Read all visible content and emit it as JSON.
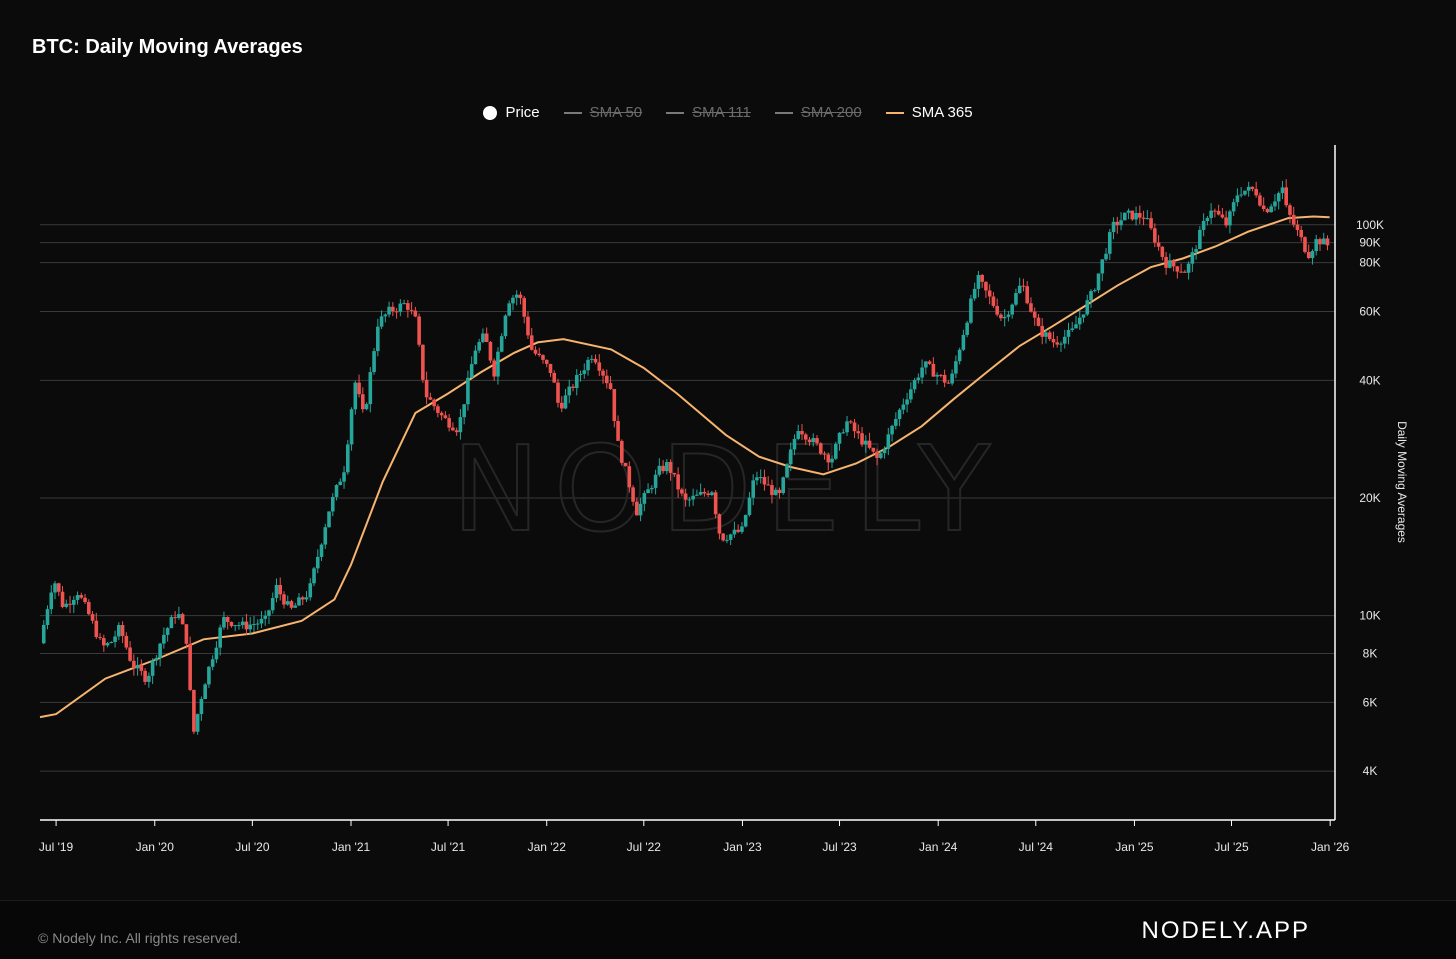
{
  "title": "BTC: Daily Moving Averages",
  "legend": [
    {
      "label": "Price",
      "marker": "dot",
      "active": true,
      "color": "#ffffff"
    },
    {
      "label": "SMA 50",
      "marker": "line",
      "active": false,
      "color": "#7a7a7a"
    },
    {
      "label": "SMA 111",
      "marker": "line",
      "active": false,
      "color": "#7a7a7a"
    },
    {
      "label": "SMA 200",
      "marker": "line",
      "active": false,
      "color": "#7a7a7a"
    },
    {
      "label": "SMA 365",
      "marker": "line",
      "active": true,
      "color": "#f6b46f"
    }
  ],
  "watermark": "NODELY",
  "footer": {
    "copyright": "© Nodely Inc. All rights reserved.",
    "brand": "NODELY.APP"
  },
  "colors": {
    "up": "#26a69a",
    "down": "#ef5350",
    "sma365": "#f6b46f",
    "grid": "#3a3a3a"
  },
  "chart_data": {
    "type": "candlestick",
    "title": "BTC: Daily Moving Averages",
    "ylabel": "Daily Moving Averages",
    "yscale": "log",
    "ylim": [
      3000,
      160000
    ],
    "xlim": [
      "2019-06-01",
      "2026-01-10"
    ],
    "grid": true,
    "legend_position": "top-center",
    "y_ticks": [
      {
        "value": 4000,
        "label": "4K"
      },
      {
        "value": 6000,
        "label": "6K"
      },
      {
        "value": 8000,
        "label": "8K"
      },
      {
        "value": 10000,
        "label": "10K"
      },
      {
        "value": 20000,
        "label": "20K"
      },
      {
        "value": 40000,
        "label": "40K"
      },
      {
        "value": 60000,
        "label": "60K"
      },
      {
        "value": 80000,
        "label": "80K"
      },
      {
        "value": 90000,
        "label": "90K"
      },
      {
        "value": 100000,
        "label": "100K"
      }
    ],
    "x_ticks": [
      {
        "date": "2019-07-01",
        "label": "Jul '19"
      },
      {
        "date": "2020-01-01",
        "label": "Jan '20"
      },
      {
        "date": "2020-07-01",
        "label": "Jul '20"
      },
      {
        "date": "2021-01-01",
        "label": "Jan '21"
      },
      {
        "date": "2021-07-01",
        "label": "Jul '21"
      },
      {
        "date": "2022-01-01",
        "label": "Jan '22"
      },
      {
        "date": "2022-07-01",
        "label": "Jul '22"
      },
      {
        "date": "2023-01-01",
        "label": "Jan '23"
      },
      {
        "date": "2023-07-01",
        "label": "Jul '23"
      },
      {
        "date": "2024-01-01",
        "label": "Jan '24"
      },
      {
        "date": "2024-07-01",
        "label": "Jul '24"
      },
      {
        "date": "2025-01-01",
        "label": "Jan '25"
      },
      {
        "date": "2025-07-01",
        "label": "Jul '25"
      },
      {
        "date": "2026-01-01",
        "label": "Jan '26"
      }
    ],
    "series": [
      {
        "name": "Price",
        "points": [
          [
            "2019-06-01",
            8500
          ],
          [
            "2019-06-26",
            12500
          ],
          [
            "2019-07-15",
            10500
          ],
          [
            "2019-08-10",
            11500
          ],
          [
            "2019-09-01",
            10000
          ],
          [
            "2019-09-25",
            8300
          ],
          [
            "2019-10-10",
            8500
          ],
          [
            "2019-10-28",
            9300
          ],
          [
            "2019-11-20",
            7500
          ],
          [
            "2019-12-17",
            6900
          ],
          [
            "2020-01-15",
            8800
          ],
          [
            "2020-02-12",
            10300
          ],
          [
            "2020-03-01",
            8600
          ],
          [
            "2020-03-12",
            4900
          ],
          [
            "2020-04-01",
            6600
          ],
          [
            "2020-05-08",
            9800
          ],
          [
            "2020-06-15",
            9400
          ],
          [
            "2020-07-25",
            9700
          ],
          [
            "2020-08-15",
            11800
          ],
          [
            "2020-09-10",
            10300
          ],
          [
            "2020-10-15",
            11500
          ],
          [
            "2020-11-20",
            18500
          ],
          [
            "2020-12-20",
            24000
          ],
          [
            "2021-01-08",
            40000
          ],
          [
            "2021-01-25",
            32000
          ],
          [
            "2021-02-20",
            56000
          ],
          [
            "2021-03-13",
            60000
          ],
          [
            "2021-04-14",
            63000
          ],
          [
            "2021-05-01",
            57000
          ],
          [
            "2021-05-19",
            37000
          ],
          [
            "2021-06-22",
            32000
          ],
          [
            "2021-07-20",
            30000
          ],
          [
            "2021-08-20",
            48000
          ],
          [
            "2021-09-07",
            52000
          ],
          [
            "2021-09-25",
            42000
          ],
          [
            "2021-10-20",
            64000
          ],
          [
            "2021-11-10",
            67000
          ],
          [
            "2021-12-04",
            48000
          ],
          [
            "2022-01-10",
            42000
          ],
          [
            "2022-01-24",
            34000
          ],
          [
            "2022-03-28",
            47000
          ],
          [
            "2022-05-01",
            38000
          ],
          [
            "2022-05-12",
            28000
          ],
          [
            "2022-06-18",
            18500
          ],
          [
            "2022-07-30",
            23500
          ],
          [
            "2022-08-15",
            24400
          ],
          [
            "2022-09-15",
            19500
          ],
          [
            "2022-11-05",
            21000
          ],
          [
            "2022-11-21",
            15800
          ],
          [
            "2022-12-31",
            16500
          ],
          [
            "2023-01-25",
            23000
          ],
          [
            "2023-03-10",
            20000
          ],
          [
            "2023-04-14",
            30500
          ],
          [
            "2023-06-15",
            25000
          ],
          [
            "2023-07-13",
            31500
          ],
          [
            "2023-09-11",
            25000
          ],
          [
            "2023-10-25",
            34500
          ],
          [
            "2023-12-05",
            44000
          ],
          [
            "2024-01-23",
            39000
          ],
          [
            "2024-03-14",
            73000
          ],
          [
            "2024-05-01",
            57000
          ],
          [
            "2024-06-05",
            71000
          ],
          [
            "2024-07-05",
            54000
          ],
          [
            "2024-08-05",
            50000
          ],
          [
            "2024-09-06",
            53000
          ],
          [
            "2024-10-15",
            67000
          ],
          [
            "2024-11-22",
            99000
          ],
          [
            "2024-12-17",
            106000
          ],
          [
            "2025-01-20",
            105000
          ],
          [
            "2025-02-28",
            80000
          ],
          [
            "2025-04-08",
            76000
          ],
          [
            "2025-05-22",
            111000
          ],
          [
            "2025-06-22",
            100000
          ],
          [
            "2025-07-14",
            122000
          ],
          [
            "2025-08-14",
            123000
          ],
          [
            "2025-09-01",
            108000
          ],
          [
            "2025-10-06",
            125000
          ],
          [
            "2025-10-11",
            110000
          ],
          [
            "2025-11-21",
            84000
          ],
          [
            "2025-12-08",
            92000
          ],
          [
            "2025-12-31",
            88000
          ]
        ]
      },
      {
        "name": "SMA 365",
        "points": [
          [
            "2019-06-01",
            5500
          ],
          [
            "2019-07-01",
            5600
          ],
          [
            "2019-10-01",
            6900
          ],
          [
            "2020-01-01",
            7700
          ],
          [
            "2020-04-01",
            8700
          ],
          [
            "2020-07-01",
            9000
          ],
          [
            "2020-10-01",
            9700
          ],
          [
            "2020-12-01",
            11000
          ],
          [
            "2021-01-01",
            13500
          ],
          [
            "2021-03-01",
            22000
          ],
          [
            "2021-05-01",
            33000
          ],
          [
            "2021-07-01",
            37000
          ],
          [
            "2021-09-01",
            42000
          ],
          [
            "2021-11-01",
            47000
          ],
          [
            "2021-12-15",
            50000
          ],
          [
            "2022-02-01",
            51000
          ],
          [
            "2022-05-01",
            48000
          ],
          [
            "2022-07-01",
            43000
          ],
          [
            "2022-09-01",
            37000
          ],
          [
            "2022-12-01",
            29000
          ],
          [
            "2023-02-01",
            25500
          ],
          [
            "2023-04-01",
            24000
          ],
          [
            "2023-06-01",
            23000
          ],
          [
            "2023-08-01",
            24500
          ],
          [
            "2023-10-01",
            27000
          ],
          [
            "2023-12-01",
            30500
          ],
          [
            "2024-02-01",
            36000
          ],
          [
            "2024-04-01",
            42000
          ],
          [
            "2024-06-01",
            49000
          ],
          [
            "2024-08-01",
            55000
          ],
          [
            "2024-10-01",
            62000
          ],
          [
            "2024-12-01",
            70000
          ],
          [
            "2025-02-01",
            78000
          ],
          [
            "2025-04-01",
            82000
          ],
          [
            "2025-06-01",
            88000
          ],
          [
            "2025-08-01",
            96000
          ],
          [
            "2025-10-15",
            104000
          ],
          [
            "2025-12-01",
            105000
          ],
          [
            "2025-12-31",
            104500
          ]
        ]
      }
    ]
  }
}
